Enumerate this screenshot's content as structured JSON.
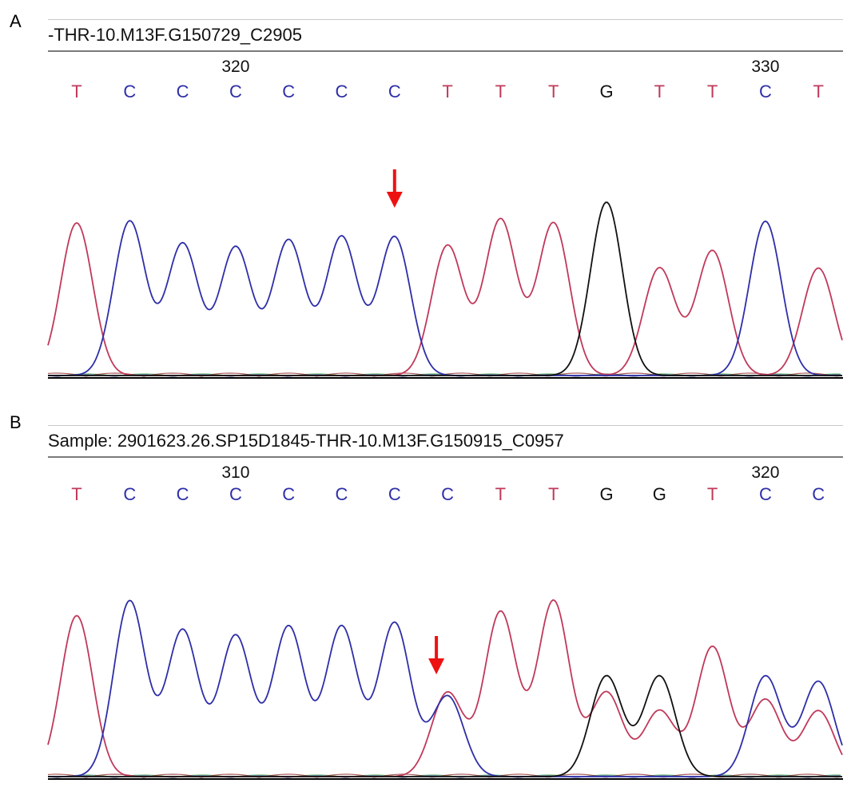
{
  "panels": [
    {
      "letter": "A",
      "sample_label": "-THR-10.M13F.G150729_C2905",
      "position_labels": [
        "320",
        "330"
      ]
    },
    {
      "letter": "B",
      "sample_label": "Sample: 2901623.26.SP15D1845-THR-10.M13F.G150915_C0957",
      "position_labels": [
        "310",
        "320"
      ]
    }
  ],
  "colors": {
    "T": "#c0395a",
    "C": "#2e2ea8",
    "G": "#111111",
    "A": "#2a9d2a",
    "arrow": "#ee1111",
    "baseline": "#000000"
  },
  "chart_data": [
    {
      "type": "line",
      "title": "",
      "position_ticks": [
        {
          "base_index": 3,
          "label": "320"
        },
        {
          "base_index": 13,
          "label": "330"
        }
      ],
      "bases": [
        "T",
        "C",
        "C",
        "C",
        "C",
        "C",
        "C",
        "T",
        "T",
        "T",
        "G",
        "T",
        "T",
        "C",
        "T"
      ],
      "series": [
        {
          "base": "T",
          "peaks": [
            {
              "index": 0,
              "value": 0.88
            },
            {
              "index": 7,
              "value": 0.75
            },
            {
              "index": 8,
              "value": 0.9
            },
            {
              "index": 9,
              "value": 0.88
            },
            {
              "index": 11,
              "value": 0.62
            },
            {
              "index": 12,
              "value": 0.72
            },
            {
              "index": 14,
              "value": 0.62
            }
          ]
        },
        {
          "base": "C",
          "peaks": [
            {
              "index": 1,
              "value": 0.89
            },
            {
              "index": 2,
              "value": 0.76
            },
            {
              "index": 3,
              "value": 0.74
            },
            {
              "index": 4,
              "value": 0.78
            },
            {
              "index": 5,
              "value": 0.8
            },
            {
              "index": 6,
              "value": 0.8
            },
            {
              "index": 13,
              "value": 0.89
            }
          ]
        },
        {
          "base": "G",
          "peaks": [
            {
              "index": 10,
              "value": 1.0
            }
          ]
        }
      ],
      "arrow_at_base_index": 6
    },
    {
      "type": "line",
      "title": "",
      "position_ticks": [
        {
          "base_index": 3,
          "label": "310"
        },
        {
          "base_index": 13,
          "label": "320"
        }
      ],
      "bases": [
        "T",
        "C",
        "C",
        "C",
        "C",
        "C",
        "C",
        "C",
        "T",
        "T",
        "G",
        "G",
        "T",
        "C",
        "C"
      ],
      "series": [
        {
          "base": "T",
          "peaks": [
            {
              "index": 0,
              "value": 0.88
            },
            {
              "index": 7,
              "value": 0.46
            },
            {
              "index": 8,
              "value": 0.9
            },
            {
              "index": 9,
              "value": 0.96
            },
            {
              "index": 10,
              "value": 0.46
            },
            {
              "index": 11,
              "value": 0.36
            },
            {
              "index": 12,
              "value": 0.71
            },
            {
              "index": 13,
              "value": 0.42
            },
            {
              "index": 14,
              "value": 0.36
            }
          ]
        },
        {
          "base": "C",
          "peaks": [
            {
              "index": 1,
              "value": 0.96
            },
            {
              "index": 2,
              "value": 0.8
            },
            {
              "index": 3,
              "value": 0.77
            },
            {
              "index": 4,
              "value": 0.82
            },
            {
              "index": 5,
              "value": 0.82
            },
            {
              "index": 6,
              "value": 0.84
            },
            {
              "index": 7,
              "value": 0.44
            },
            {
              "index": 13,
              "value": 0.55
            },
            {
              "index": 14,
              "value": 0.52
            }
          ]
        },
        {
          "base": "G",
          "peaks": [
            {
              "index": 10,
              "value": 0.55
            },
            {
              "index": 11,
              "value": 0.55
            }
          ]
        }
      ],
      "arrow_at_base_index": 7
    }
  ]
}
